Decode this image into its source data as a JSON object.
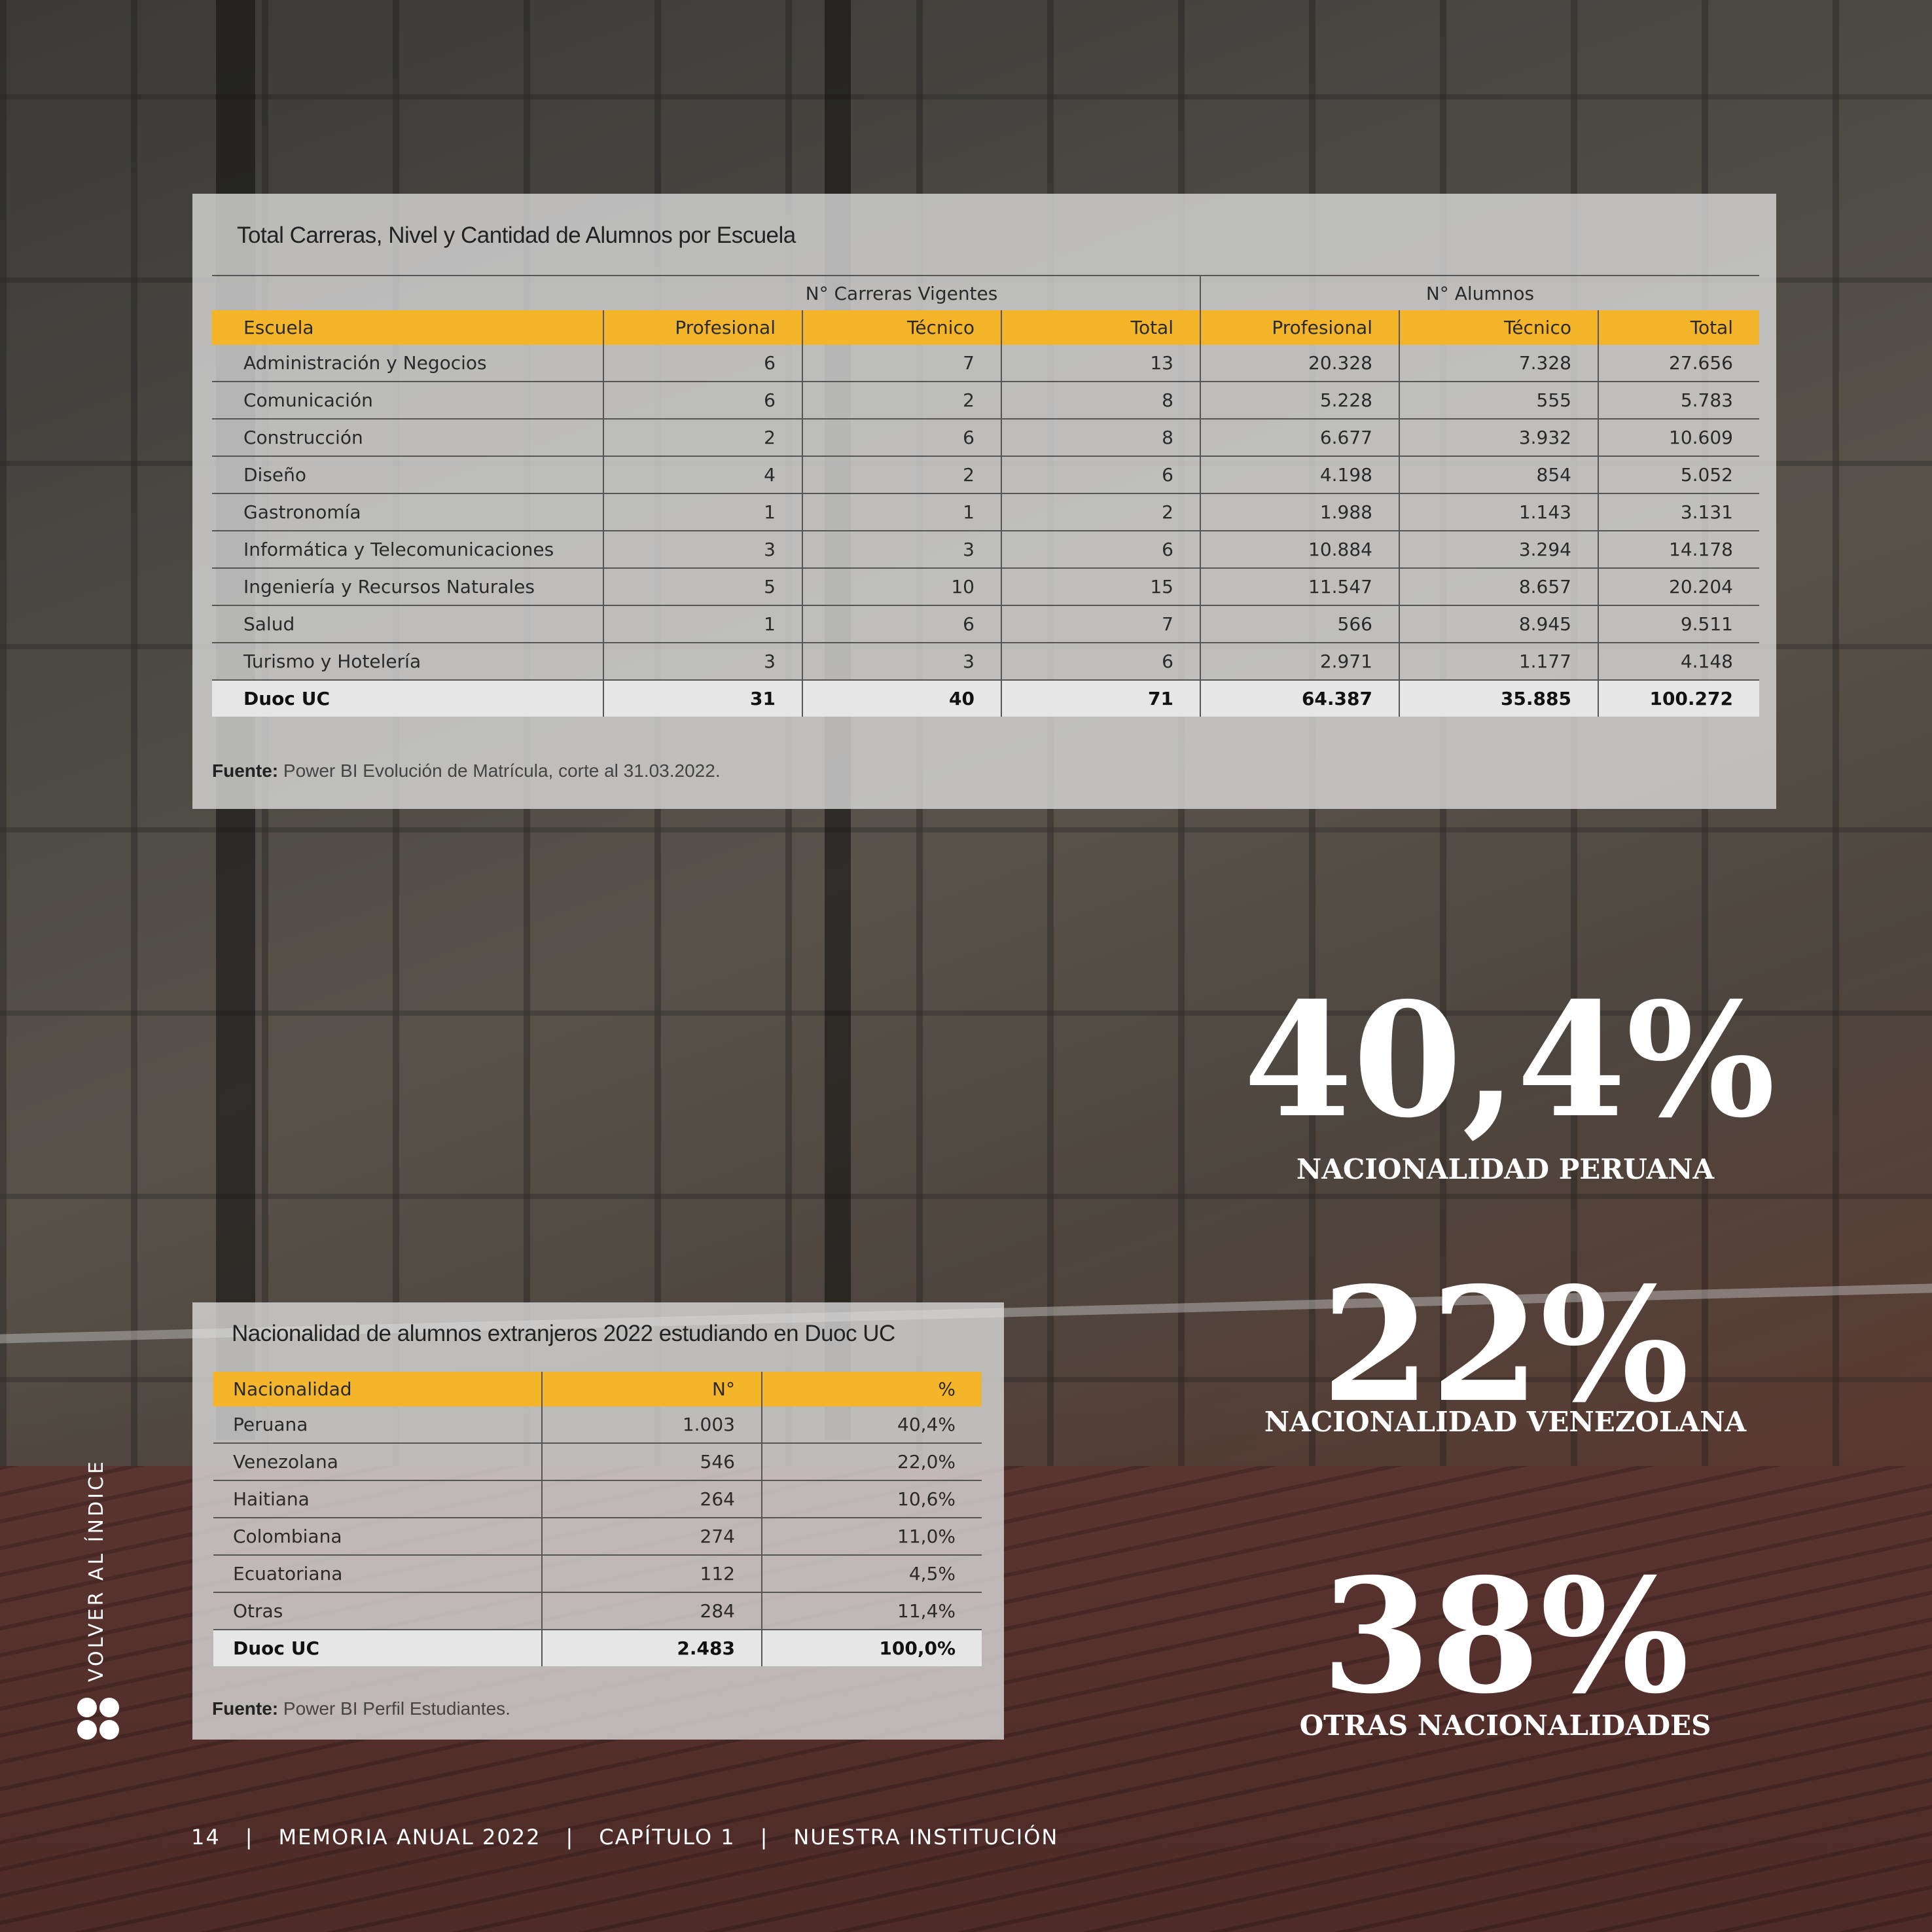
{
  "table1": {
    "title": "Total Carreras, Nivel y Cantidad de Alumnos por Escuela",
    "group_headers": [
      "N° Carreras  Vigentes",
      "N° Alumnos"
    ],
    "columns": [
      "Escuela",
      "Profesional",
      "Técnico",
      "Total",
      "Profesional",
      "Técnico",
      "Total"
    ],
    "rows": [
      [
        "Administración y Negocios",
        "6",
        "7",
        "13",
        "20.328",
        "7.328",
        "27.656"
      ],
      [
        "Comunicación",
        "6",
        "2",
        "8",
        "5.228",
        "555",
        "5.783"
      ],
      [
        "Construcción",
        "2",
        "6",
        "8",
        "6.677",
        "3.932",
        "10.609"
      ],
      [
        "Diseño",
        "4",
        "2",
        "6",
        "4.198",
        "854",
        "5.052"
      ],
      [
        "Gastronomía",
        "1",
        "1",
        "2",
        "1.988",
        "1.143",
        "3.131"
      ],
      [
        "Informática y Telecomunicaciones",
        "3",
        "3",
        "6",
        "10.884",
        "3.294",
        "14.178"
      ],
      [
        "Ingeniería y Recursos Naturales",
        "5",
        "10",
        "15",
        "11.547",
        "8.657",
        "20.204"
      ],
      [
        "Salud",
        "1",
        "6",
        "7",
        "566",
        "8.945",
        "9.511"
      ],
      [
        "Turismo y Hotelería",
        "3",
        "3",
        "6",
        "2.971",
        "1.177",
        "4.148"
      ]
    ],
    "total": [
      "Duoc UC",
      "31",
      "40",
      "71",
      "64.387",
      "35.885",
      "100.272"
    ],
    "source_label": "Fuente:",
    "source_text": " Power BI Evolución de Matrícula, corte al 31.03.2022."
  },
  "table2": {
    "title": "Nacionalidad de alumnos extranjeros 2022 estudiando en Duoc UC",
    "columns": [
      "Nacionalidad",
      "N°",
      "%"
    ],
    "rows": [
      [
        "Peruana",
        "1.003",
        "40,4%"
      ],
      [
        "Venezolana",
        "546",
        "22,0%"
      ],
      [
        "Haitiana",
        "264",
        "10,6%"
      ],
      [
        "Colombiana",
        "274",
        "11,0%"
      ],
      [
        "Ecuatoriana",
        "112",
        "4,5%"
      ],
      [
        "Otras",
        "284",
        "11,4%"
      ]
    ],
    "total": [
      "Duoc UC",
      "2.483",
      "100,0%"
    ],
    "source_label": "Fuente:",
    "source_text": " Power BI Perfil Estudiantes."
  },
  "stats": [
    {
      "value": "40,4%",
      "label": "NACIONALIDAD PERUANA"
    },
    {
      "value": "22%",
      "label": "NACIONALIDAD VENEZOLANA"
    },
    {
      "value": "38%",
      "label": "OTRAS NACIONALIDADES"
    }
  ],
  "footer": {
    "page": "14",
    "separator": "|",
    "report": "MEMORIA ANUAL 2022",
    "chapter": "CAPÍTULO 1",
    "section": "NUESTRA INSTITUCIÓN"
  },
  "side_link": "VOLVER AL ÍNDICE",
  "colors": {
    "header_yellow": "#f4b52a",
    "total_row": "#e6e6e6",
    "text_white": "#ffffff"
  }
}
